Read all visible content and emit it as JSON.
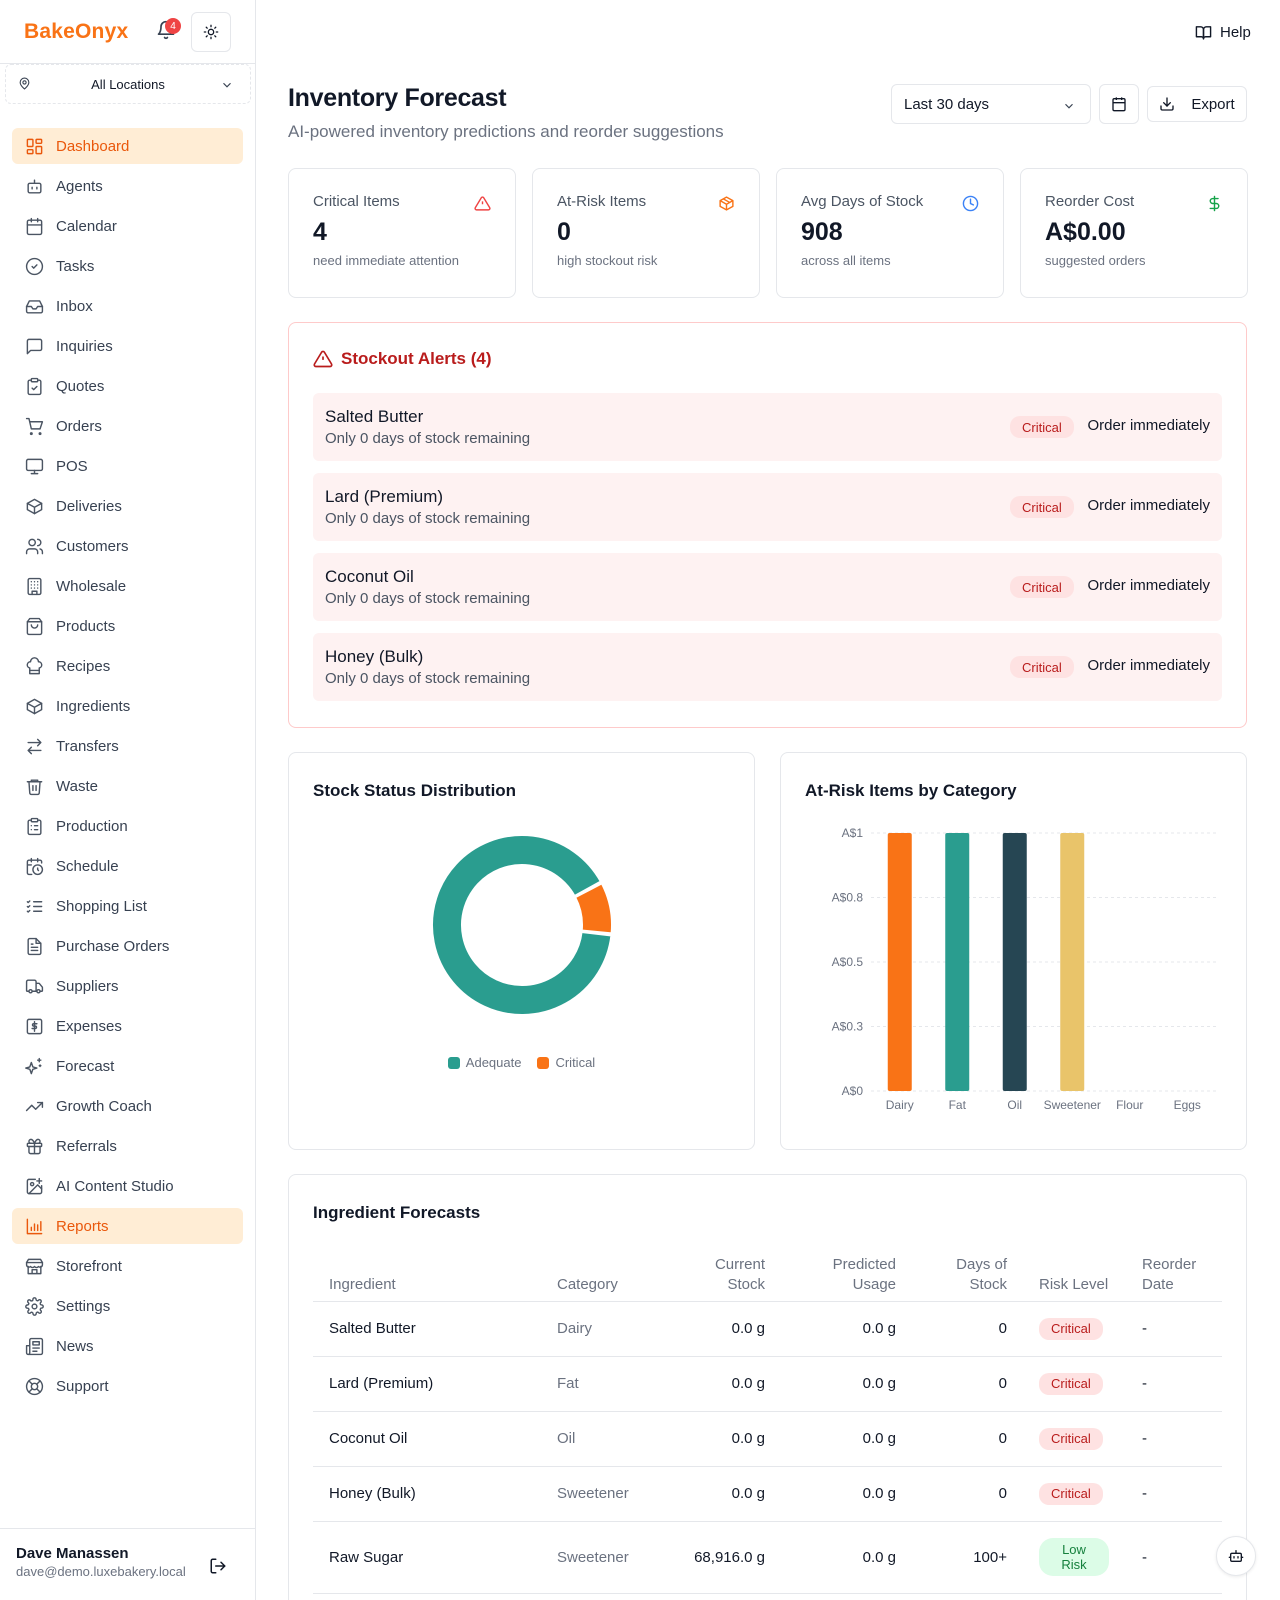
{
  "sidebar": {
    "brand": "BakeOnyx",
    "notification_count": "4",
    "location": "All Locations",
    "items": [
      {
        "label": "Dashboard",
        "icon": "dashboard-icon",
        "active": true
      },
      {
        "label": "Agents",
        "icon": "bot-icon"
      },
      {
        "label": "Calendar",
        "icon": "calendar-icon"
      },
      {
        "label": "Tasks",
        "icon": "check-circle-icon"
      },
      {
        "label": "Inbox",
        "icon": "inbox-icon"
      },
      {
        "label": "Inquiries",
        "icon": "message-icon"
      },
      {
        "label": "Quotes",
        "icon": "clipboard-check-icon"
      },
      {
        "label": "Orders",
        "icon": "cart-icon"
      },
      {
        "label": "POS",
        "icon": "monitor-icon"
      },
      {
        "label": "Deliveries",
        "icon": "package-icon"
      },
      {
        "label": "Customers",
        "icon": "users-icon"
      },
      {
        "label": "Wholesale",
        "icon": "building-icon"
      },
      {
        "label": "Products",
        "icon": "shopping-bag-icon"
      },
      {
        "label": "Recipes",
        "icon": "chef-hat-icon"
      },
      {
        "label": "Ingredients",
        "icon": "box-icon"
      },
      {
        "label": "Transfers",
        "icon": "transfer-icon"
      },
      {
        "label": "Waste",
        "icon": "trash-icon"
      },
      {
        "label": "Production",
        "icon": "clipboard-list-icon"
      },
      {
        "label": "Schedule",
        "icon": "calendar-clock-icon"
      },
      {
        "label": "Shopping List",
        "icon": "list-check-icon"
      },
      {
        "label": "Purchase Orders",
        "icon": "file-text-icon"
      },
      {
        "label": "Suppliers",
        "icon": "truck-icon"
      },
      {
        "label": "Expenses",
        "icon": "dollar-receipt-icon"
      },
      {
        "label": "Forecast",
        "icon": "sparkles-icon"
      },
      {
        "label": "Growth Coach",
        "icon": "trending-up-icon"
      },
      {
        "label": "Referrals",
        "icon": "gift-icon"
      },
      {
        "label": "AI Content Studio",
        "icon": "image-sparkle-icon"
      },
      {
        "label": "Reports",
        "icon": "bar-chart-icon",
        "active": true
      },
      {
        "label": "Storefront",
        "icon": "store-icon"
      },
      {
        "label": "Settings",
        "icon": "gear-icon"
      },
      {
        "label": "News",
        "icon": "newspaper-icon"
      },
      {
        "label": "Support",
        "icon": "life-buoy-icon"
      }
    ],
    "user": {
      "name": "Dave Manassen",
      "email": "dave@demo.luxebakery.local"
    }
  },
  "header": {
    "help_label": "Help",
    "title": "Inventory Forecast",
    "subtitle": "AI-powered inventory predictions and reorder suggestions",
    "range": "Last 30 days",
    "export_label": "Export"
  },
  "stats": [
    {
      "label": "Critical Items",
      "value": "4",
      "note": "need immediate attention",
      "icon": "alert-triangle-icon",
      "color": "#ef4444"
    },
    {
      "label": "At-Risk Items",
      "value": "0",
      "note": "high stockout risk",
      "icon": "package-icon",
      "color": "#f97316"
    },
    {
      "label": "Avg Days of Stock",
      "value": "908",
      "note": "across all items",
      "icon": "clock-icon",
      "color": "#3b82f6"
    },
    {
      "label": "Reorder Cost",
      "value": "A$0.00",
      "note": "suggested orders",
      "icon": "dollar-icon",
      "color": "#16a34a"
    }
  ],
  "alerts": {
    "title": "Stockout Alerts (4)",
    "items": [
      {
        "name": "Salted Butter",
        "message": "Only 0 days of stock remaining",
        "badge": "Critical",
        "action": "Order immediately"
      },
      {
        "name": "Lard (Premium)",
        "message": "Only 0 days of stock remaining",
        "badge": "Critical",
        "action": "Order immediately"
      },
      {
        "name": "Coconut Oil",
        "message": "Only 0 days of stock remaining",
        "badge": "Critical",
        "action": "Order immediately"
      },
      {
        "name": "Honey (Bulk)",
        "message": "Only 0 days of stock remaining",
        "badge": "Critical",
        "action": "Order immediately"
      }
    ]
  },
  "chart_data": [
    {
      "type": "pie",
      "title": "Stock Status Distribution",
      "categories": [
        "Adequate",
        "Critical"
      ],
      "values": [
        90.5,
        9.5
      ],
      "colors": [
        "#2a9d8f",
        "#f97316"
      ],
      "legend": "bottom"
    },
    {
      "type": "bar",
      "title": "At-Risk Items by Category",
      "categories": [
        "Dairy",
        "Fat",
        "Oil",
        "Sweetener",
        "Flour",
        "Eggs"
      ],
      "values": [
        1,
        1,
        1,
        1,
        0,
        0
      ],
      "colors": [
        "#f97316",
        "#2a9d8f",
        "#264653",
        "#e9c46a",
        "#f4a261",
        "#e76f51"
      ],
      "yticks": [
        "A$0",
        "A$0.3",
        "A$0.5",
        "A$0.8",
        "A$1"
      ],
      "ytick_values": [
        0,
        0.25,
        0.5,
        0.75,
        1
      ],
      "ylim": [
        0,
        1
      ],
      "grid": true
    }
  ],
  "table": {
    "title": "Ingredient Forecasts",
    "headers": [
      "Ingredient",
      "Category",
      "Current Stock",
      "Predicted Usage",
      "Days of Stock",
      "Risk Level",
      "Reorder Date"
    ],
    "rows": [
      {
        "ingredient": "Salted Butter",
        "category": "Dairy",
        "stock": "0.0 g",
        "usage": "0.0 g",
        "days": "0",
        "risk": "Critical",
        "reorder": "-"
      },
      {
        "ingredient": "Lard (Premium)",
        "category": "Fat",
        "stock": "0.0 g",
        "usage": "0.0 g",
        "days": "0",
        "risk": "Critical",
        "reorder": "-"
      },
      {
        "ingredient": "Coconut Oil",
        "category": "Oil",
        "stock": "0.0 g",
        "usage": "0.0 g",
        "days": "0",
        "risk": "Critical",
        "reorder": "-"
      },
      {
        "ingredient": "Honey (Bulk)",
        "category": "Sweetener",
        "stock": "0.0 g",
        "usage": "0.0 g",
        "days": "0",
        "risk": "Critical",
        "reorder": "-"
      },
      {
        "ingredient": "Raw Sugar",
        "category": "Sweetener",
        "stock": "68,916.0 g",
        "usage": "0.0 g",
        "days": "100+",
        "risk": "Low Risk",
        "reorder": "-"
      }
    ]
  }
}
